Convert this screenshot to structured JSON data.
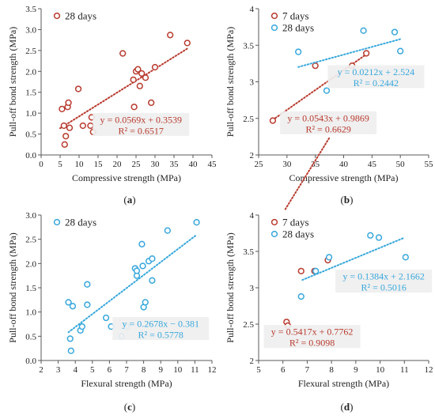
{
  "colors": {
    "red": "#b83a2e",
    "blue": "#37a7dc",
    "axis": "#595959",
    "grid": "#d9d9d9",
    "eqbox": "#efefef"
  },
  "chart_data": [
    {
      "type": "scatter",
      "caption_open": "(",
      "caption_letter": "a",
      "caption_close": ")",
      "xlabel": "Compressive strength (MPa)",
      "ylabel": "Pull-off bond strength (MPa)",
      "xlim": [
        0,
        45
      ],
      "xstep": 5,
      "ylim": [
        0,
        3.5
      ],
      "ystep": 0.5,
      "ytick_decimals": 1,
      "legend_position": "top-left",
      "series": [
        {
          "name": "28 days",
          "color": "red",
          "points": [
            [
              5.5,
              1.1
            ],
            [
              6,
              0.7
            ],
            [
              6.5,
              0.45
            ],
            [
              6.2,
              0.25
            ],
            [
              7,
              1.15
            ],
            [
              7.2,
              1.25
            ],
            [
              7.5,
              0.65
            ],
            [
              9.8,
              1.58
            ],
            [
              11,
              0.7
            ],
            [
              13,
              0.7
            ],
            [
              13.3,
              0.9
            ],
            [
              13.7,
              0.55
            ],
            [
              21.5,
              2.43
            ],
            [
              24.3,
              1.8
            ],
            [
              24.5,
              1.15
            ],
            [
              25,
              2.0
            ],
            [
              25.5,
              2.05
            ],
            [
              26,
              1.65
            ],
            [
              26.5,
              1.95
            ],
            [
              27.5,
              1.85
            ],
            [
              29,
              1.25
            ],
            [
              30,
              2.1
            ],
            [
              34,
              2.87
            ],
            [
              38.5,
              2.68
            ]
          ],
          "trendline": {
            "slope": 0.0569,
            "intercept": 0.3539,
            "x_range": [
              5,
              38.5
            ]
          },
          "equation": "y = 0.0569x + 0.3539",
          "r2": "R² = 0.6517",
          "label_anchor": [
            26.3,
            0.73
          ]
        }
      ]
    },
    {
      "type": "scatter",
      "caption_open": "(",
      "caption_letter": "b",
      "caption_close": ")",
      "xlabel": "Compressive strength (MPa)",
      "ylabel": "Pull-off bond strength (MPa)",
      "xlim": [
        25,
        55
      ],
      "xstep": 5,
      "ylim": [
        2,
        4
      ],
      "ystep": 0.5,
      "ytick_decimals": 0,
      "legend_position": "top-left",
      "series": [
        {
          "name": "7 days",
          "color": "red",
          "points": [
            [
              27.5,
              2.47
            ],
            [
              35,
              3.22
            ],
            [
              35.5,
              2.53
            ],
            [
              41.5,
              3.22
            ],
            [
              44,
              3.39
            ]
          ],
          "trendline": {
            "slope": 0.0543,
            "intercept": 0.9869,
            "x_range": [
              27.5,
              44
            ]
          },
          "equation": "y = 0.0543x + 0.9869",
          "r2": "R² = 0.6629",
          "label_anchor": [
            37.3,
            2.44
          ]
        },
        {
          "name": "28 days",
          "color": "blue",
          "points": [
            [
              32,
              3.41
            ],
            [
              37,
              2.88
            ],
            [
              43.5,
              3.7
            ],
            [
              49,
              3.68
            ],
            [
              50,
              3.42
            ]
          ],
          "trendline": {
            "slope": 0.0212,
            "intercept": 2.524,
            "x_range": [
              32,
              50
            ]
          },
          "equation": "y = 0.0212x + 2.524",
          "r2": "R² = 0.2442",
          "label_anchor": [
            45.7,
            3.07
          ]
        }
      ]
    },
    {
      "type": "scatter",
      "caption_open": "(",
      "caption_letter": "c",
      "caption_close": ")",
      "xlabel": "Flexural strength (MPa)",
      "ylabel": "Pull-off bond strength (MPa)",
      "xlim": [
        2,
        12
      ],
      "xstep": 1,
      "ylim": [
        0,
        3
      ],
      "ystep": 0.5,
      "ytick_decimals": 1,
      "legend_position": "top-left",
      "series": [
        {
          "name": "28 days",
          "color": "blue",
          "points": [
            [
              3.6,
              1.2
            ],
            [
              3.7,
              0.45
            ],
            [
              3.75,
              0.2
            ],
            [
              3.85,
              1.12
            ],
            [
              4.3,
              0.62
            ],
            [
              4.4,
              0.7
            ],
            [
              4.7,
              1.57
            ],
            [
              4.7,
              1.15
            ],
            [
              5.8,
              0.88
            ],
            [
              6.1,
              0.7
            ],
            [
              6.7,
              0.5
            ],
            [
              7,
              0.7
            ],
            [
              7.5,
              1.9
            ],
            [
              7.6,
              1.75
            ],
            [
              7.6,
              1.85
            ],
            [
              7.9,
              2.4
            ],
            [
              7.95,
              1.95
            ],
            [
              8,
              1.1
            ],
            [
              8.1,
              1.2
            ],
            [
              8.3,
              2.05
            ],
            [
              8.5,
              2.1
            ],
            [
              8.5,
              1.65
            ],
            [
              9.4,
              2.68
            ],
            [
              11.1,
              2.85
            ]
          ],
          "trendline": {
            "slope": 0.2678,
            "intercept": -0.381,
            "x_range": [
              3.6,
              11.1
            ]
          },
          "equation": "y = 0.2678x − 0.381",
          "r2": "R² = 0.5778",
          "label_anchor": [
            9.0,
            0.66
          ]
        }
      ]
    },
    {
      "type": "scatter",
      "caption_open": "(",
      "caption_letter": "d",
      "caption_close": ")",
      "xlabel": "Flexural strength (MPa)",
      "ylabel": "Pull-off bond strength (MPa)",
      "xlim": [
        5,
        12
      ],
      "xstep": 1,
      "ylim": [
        2,
        4
      ],
      "ystep": 0.5,
      "ytick_decimals": 0,
      "legend_position": "top-left",
      "series": [
        {
          "name": "7 days",
          "color": "red",
          "points": [
            [
              6.15,
              2.53
            ],
            [
              6.2,
              2.48
            ],
            [
              6.75,
              3.23
            ],
            [
              7.3,
              3.23
            ],
            [
              7.85,
              3.38
            ]
          ],
          "trendline": {
            "slope": 0.5417,
            "intercept": 0.7762,
            "x_range": [
              6.1,
              7.9
            ]
          },
          "equation": "y = 0.5417x + 0.7762",
          "r2": "R² = 0.9098",
          "label_anchor": [
            7.2,
            2.33
          ]
        },
        {
          "name": "28 days",
          "color": "blue",
          "points": [
            [
              6.75,
              2.88
            ],
            [
              7.35,
              3.23
            ],
            [
              7.9,
              3.42
            ],
            [
              9.6,
              3.72
            ],
            [
              9.95,
              3.69
            ],
            [
              11.05,
              3.42
            ]
          ],
          "trendline": {
            "slope": 0.1384,
            "intercept": 2.1662,
            "x_range": [
              6.8,
              11
            ]
          },
          "equation": "y = 0.1384x + 2.1662",
          "r2": "R² = 0.5016",
          "label_anchor": [
            10.15,
            3.09
          ]
        }
      ]
    }
  ]
}
